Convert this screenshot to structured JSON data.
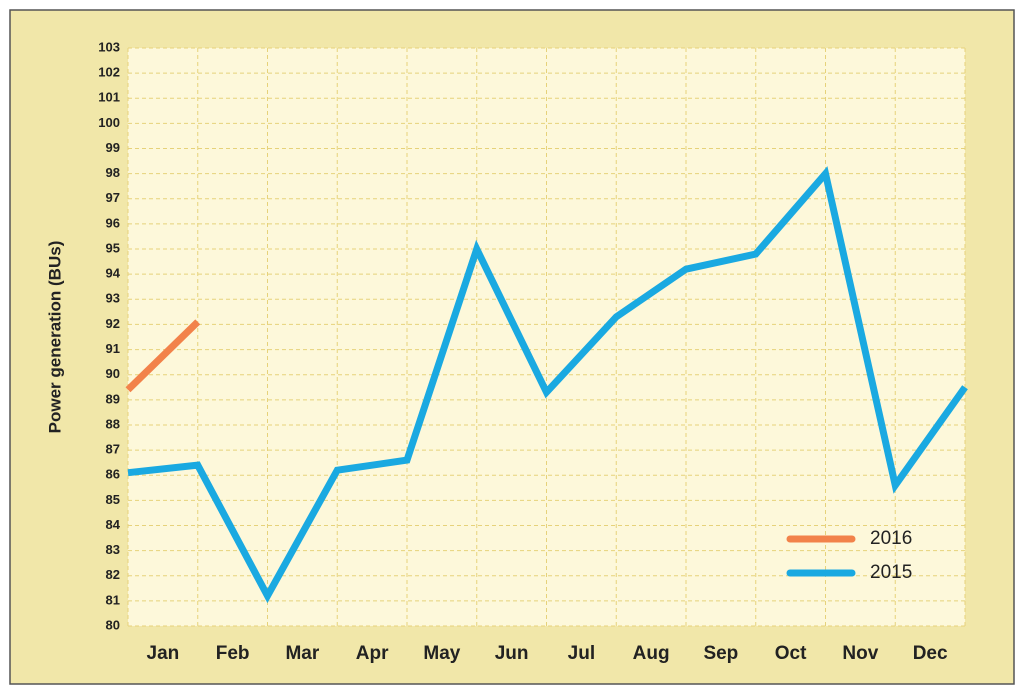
{
  "chart_data": {
    "type": "line",
    "y_label": "Power generation (BUs)",
    "categories": [
      "Jan",
      "Feb",
      "Mar",
      "Apr",
      "May",
      "Jun",
      "Jul",
      "Aug",
      "Sep",
      "Oct",
      "Nov",
      "Dec",
      null
    ],
    "series": [
      {
        "name": "2016",
        "color": "#f2824a",
        "values": [
          89.4,
          92.1,
          null,
          null,
          null,
          null,
          null,
          null,
          null,
          null,
          null,
          null,
          null
        ]
      },
      {
        "name": "2015",
        "color": "#1aa9e1",
        "values": [
          86.1,
          86.4,
          81.2,
          86.2,
          86.6,
          95.0,
          89.3,
          92.3,
          94.2,
          94.8,
          98.0,
          85.6,
          89.5
        ]
      }
    ],
    "ylim": [
      80,
      103
    ],
    "yticks": [
      80,
      81,
      82,
      83,
      84,
      85,
      86,
      87,
      88,
      89,
      90,
      91,
      92,
      93,
      94,
      95,
      96,
      97,
      98,
      99,
      100,
      101,
      102,
      103
    ],
    "grid": true,
    "legend": "lower right"
  }
}
